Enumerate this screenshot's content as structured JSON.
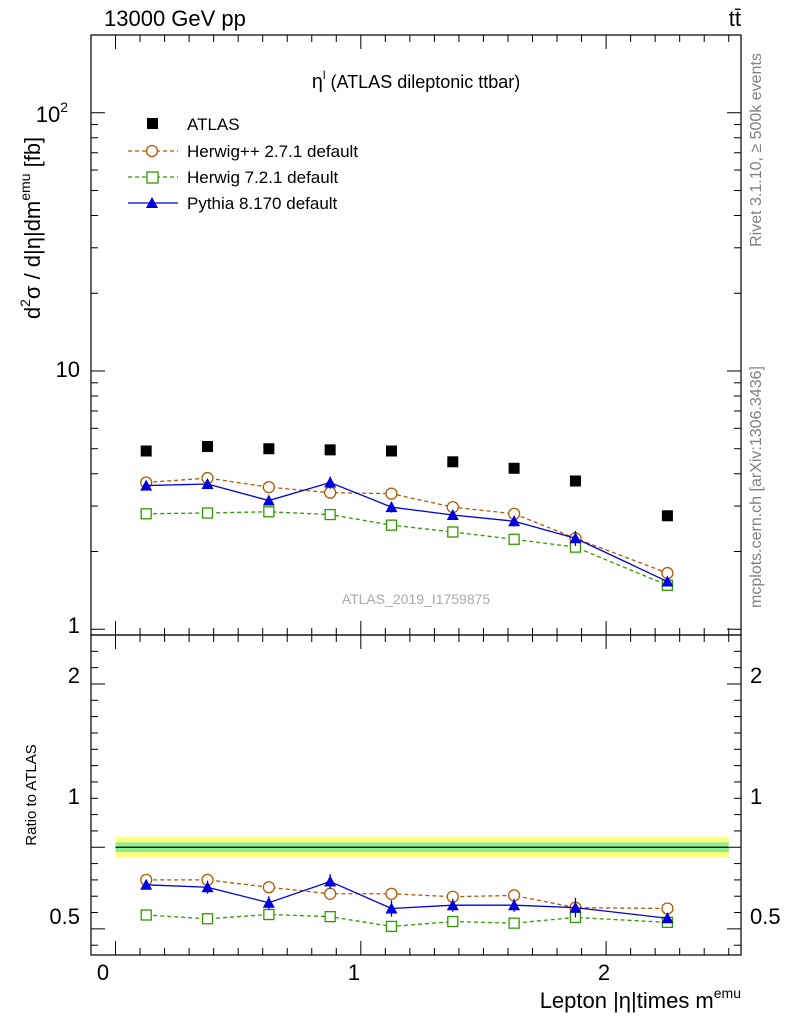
{
  "header": {
    "energy_label": "13000 GeV pp",
    "process_label": "tt̄"
  },
  "side_labels": {
    "rivet": "Rivet 3.1.10, ≥ 500k events",
    "mcplots": "mcplots.cern.ch [arXiv:1306.3436]"
  },
  "watermark": "ATLAS_2019_I1759875",
  "chart_data": [
    {
      "type": "line",
      "panel": "main",
      "title": "η^l (ATLAS dileptonic ttbar)",
      "title_main": "η",
      "title_sup": "l",
      "title_rest": " (ATLAS dileptonic ttbar)",
      "ylabel": "d²σ / d|η|dm^emu [fb]",
      "ylabel_parts": [
        "d",
        "2",
        "σ / d|η|dm",
        "emu",
        " [fb]"
      ],
      "yscale": "log",
      "ylim": [
        0.95,
        200
      ],
      "xlim": [
        -0.1,
        2.55
      ],
      "ytick_labels": [
        {
          "value": 1,
          "label": "1"
        },
        {
          "value": 10,
          "label": "10"
        },
        {
          "value": 100,
          "label": "10",
          "sup": "2"
        }
      ],
      "legend_position": "top-left",
      "x": [
        0.125,
        0.375,
        0.625,
        0.875,
        1.125,
        1.375,
        1.625,
        1.875,
        2.25
      ],
      "series": [
        {
          "name": "ATLAS",
          "color": "#000000",
          "marker": "filled-square",
          "values": [
            4.9,
            5.1,
            5.0,
            4.95,
            4.9,
            4.45,
            4.2,
            3.75,
            2.75
          ]
        },
        {
          "name": "Herwig++ 2.7.1 default",
          "color": "#b35900",
          "marker": "open-circle",
          "line": "dashed",
          "values": [
            3.7,
            3.85,
            3.55,
            3.38,
            3.35,
            2.97,
            2.8,
            2.25,
            1.65
          ]
        },
        {
          "name": "Herwig 7.2.1 default",
          "color": "#339900",
          "marker": "open-square",
          "line": "dashed",
          "values": [
            2.8,
            2.82,
            2.85,
            2.78,
            2.53,
            2.38,
            2.23,
            2.08,
            1.48
          ]
        },
        {
          "name": "Pythia 8.170 default",
          "color": "#0000dd",
          "marker": "filled-triangle",
          "line": "solid",
          "values": [
            3.6,
            3.65,
            3.15,
            3.7,
            2.97,
            2.77,
            2.62,
            2.25,
            1.53
          ],
          "errors": [
            0.12,
            0.14,
            0.13,
            0.2,
            0.14,
            0.12,
            0.12,
            0.15,
            0.06
          ]
        }
      ]
    },
    {
      "type": "line",
      "panel": "ratio",
      "ylabel": "Ratio to ATLAS",
      "xlabel": "Lepton |η|times m^emu",
      "xlabel_main": "Lepton |η|times m",
      "xlabel_sup": "emu",
      "yscale": "linear",
      "ylim": [
        0.34,
        2.3
      ],
      "xlim": [
        -0.1,
        2.55
      ],
      "ytick_labels": [
        {
          "value": 0.5,
          "label": "0.5"
        },
        {
          "value": 1,
          "label": "1"
        },
        {
          "value": 2,
          "label": "2"
        }
      ],
      "xtick_labels": [
        {
          "value": 0,
          "label": "0"
        },
        {
          "value": 1,
          "label": "1"
        },
        {
          "value": 2,
          "label": "2"
        }
      ],
      "band_inner": 0.03,
      "band_outer": 0.065,
      "x": [
        0.125,
        0.375,
        0.625,
        0.875,
        1.125,
        1.375,
        1.625,
        1.875,
        2.25
      ],
      "series": [
        {
          "name": "Herwig++ 2.7.1 default",
          "color": "#b35900",
          "marker": "open-circle",
          "line": "dashed",
          "values": [
            0.8,
            0.8,
            0.755,
            0.715,
            0.715,
            0.697,
            0.705,
            0.63,
            0.625
          ]
        },
        {
          "name": "Herwig 7.2.1 default",
          "color": "#339900",
          "marker": "open-square",
          "line": "dashed",
          "values": [
            0.585,
            0.562,
            0.588,
            0.575,
            0.515,
            0.545,
            0.535,
            0.57,
            0.54
          ]
        },
        {
          "name": "Pythia 8.170 default",
          "color": "#0000dd",
          "marker": "filled-triangle",
          "line": "solid",
          "values": [
            0.77,
            0.755,
            0.66,
            0.79,
            0.625,
            0.645,
            0.645,
            0.63,
            0.565
          ],
          "errors": [
            0.03,
            0.04,
            0.04,
            0.045,
            0.05,
            0.04,
            0.04,
            0.06,
            0.02
          ]
        }
      ]
    }
  ]
}
